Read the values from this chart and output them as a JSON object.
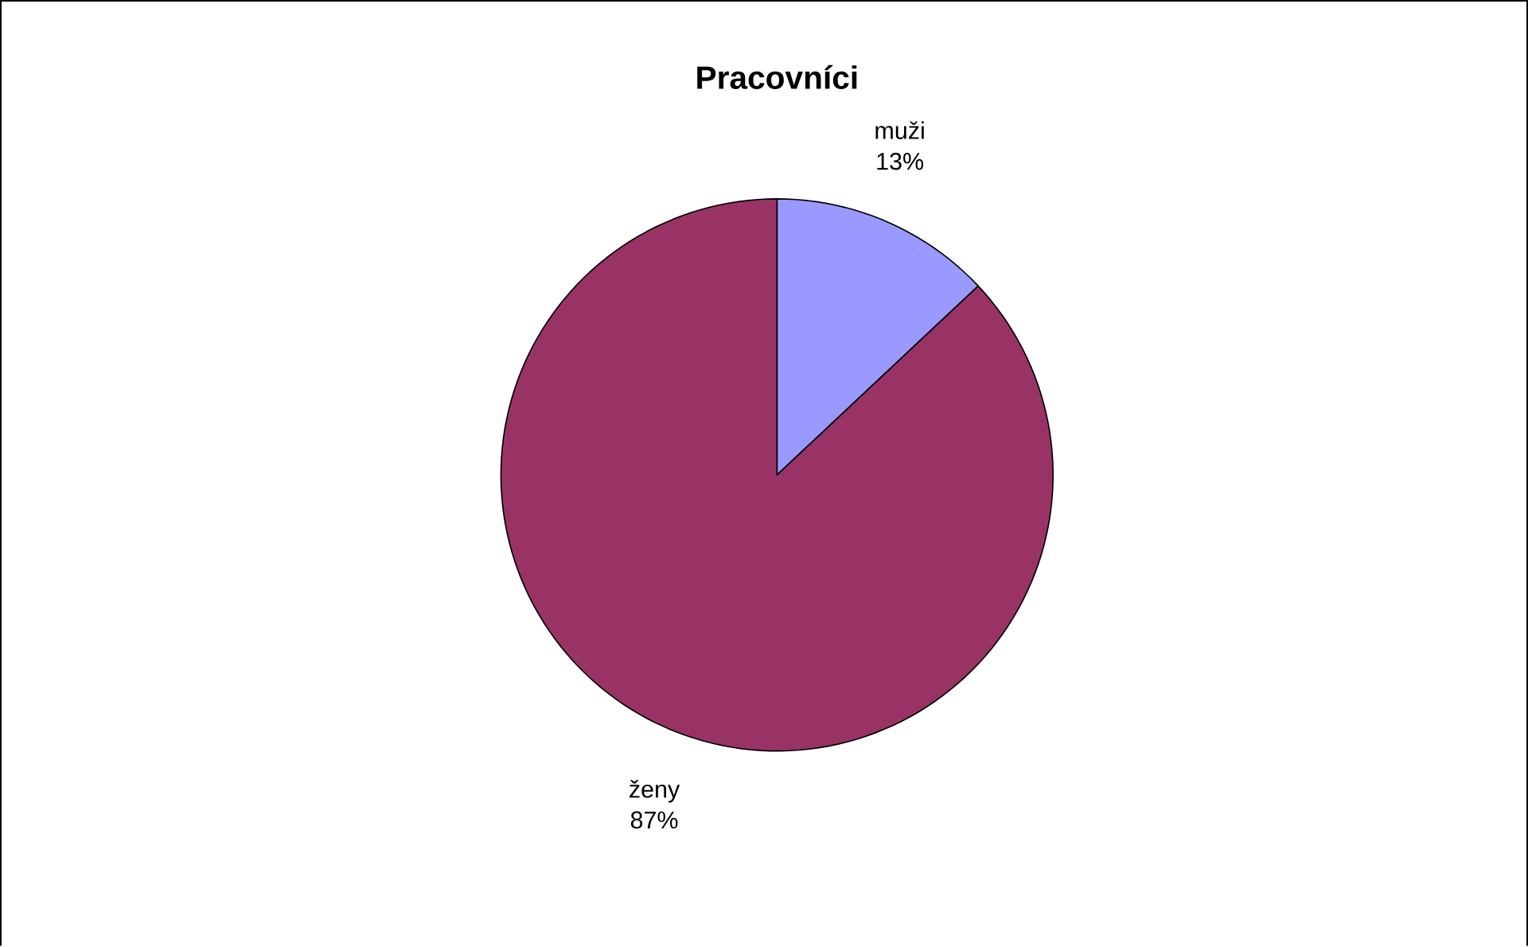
{
  "chart_data": {
    "type": "pie",
    "title": "Pracovníci",
    "categories": [
      "muži",
      "ženy"
    ],
    "values": [
      13,
      87
    ],
    "value_labels": [
      "13%",
      "87%"
    ],
    "colors": [
      "#9999ff",
      "#993366"
    ]
  }
}
